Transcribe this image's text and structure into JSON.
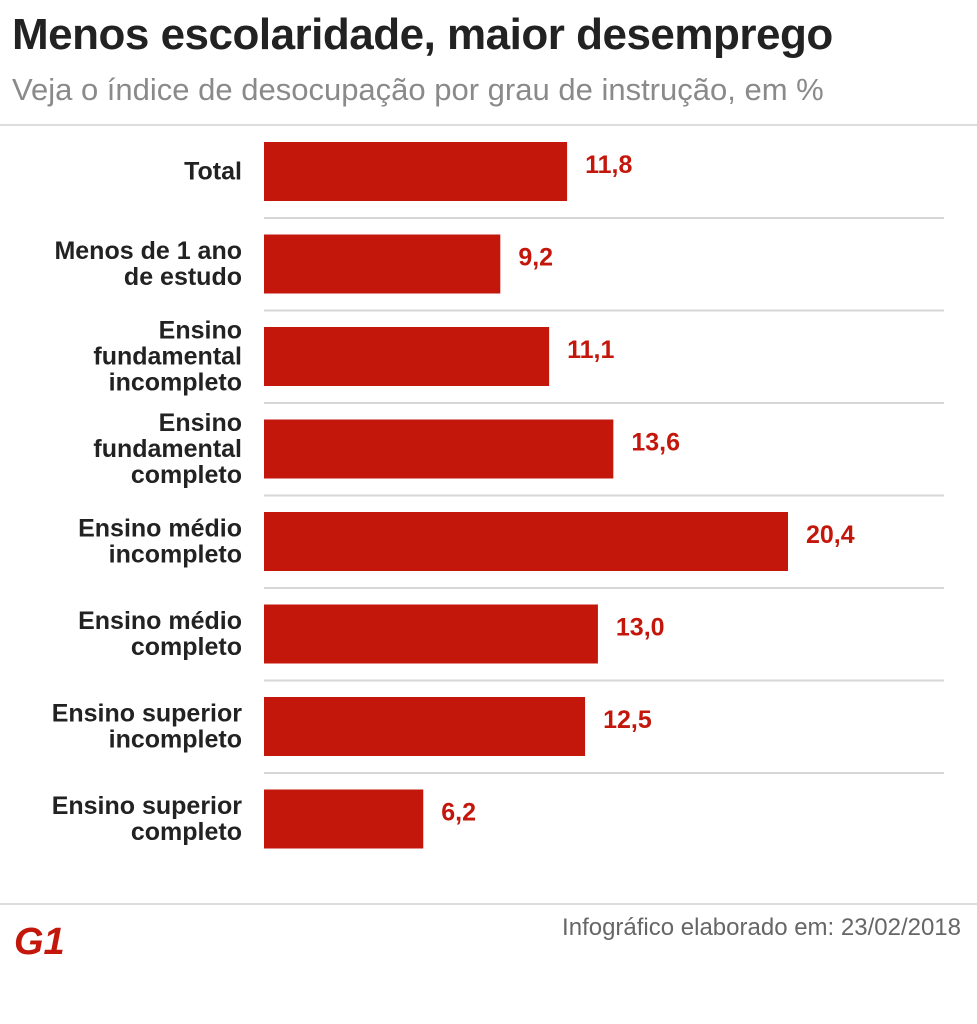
{
  "header": {
    "title": "Menos escolaridade, maior desemprego",
    "subtitle": "Veja o índice de desocupação por grau de instrução, em %"
  },
  "chart_data": {
    "type": "bar",
    "orientation": "horizontal",
    "categories": [
      [
        "Total"
      ],
      [
        "Menos de 1 ano",
        "de estudo"
      ],
      [
        "Ensino",
        "fundamental",
        "incompleto"
      ],
      [
        "Ensino",
        "fundamental",
        "completo"
      ],
      [
        "Ensino médio",
        "incompleto"
      ],
      [
        "Ensino médio",
        "completo"
      ],
      [
        "Ensino superior",
        "incompleto"
      ],
      [
        "Ensino superior",
        "completo"
      ]
    ],
    "values": [
      11.8,
      9.2,
      11.1,
      13.6,
      20.4,
      13.0,
      12.5,
      6.2
    ],
    "value_labels": [
      "11,8",
      "9,2",
      "11,1",
      "13,6",
      "20,4",
      "13,0",
      "12,5",
      "6,2"
    ],
    "unit": "%",
    "xlim": [
      0,
      20.4
    ],
    "grid": false,
    "bar_color": "#c4170c",
    "label_color": "#c4170c"
  },
  "footer": {
    "logo_text": "G1",
    "logo_color": "#c4170c",
    "note": "Infográfico elaborado em: 23/02/2018"
  }
}
